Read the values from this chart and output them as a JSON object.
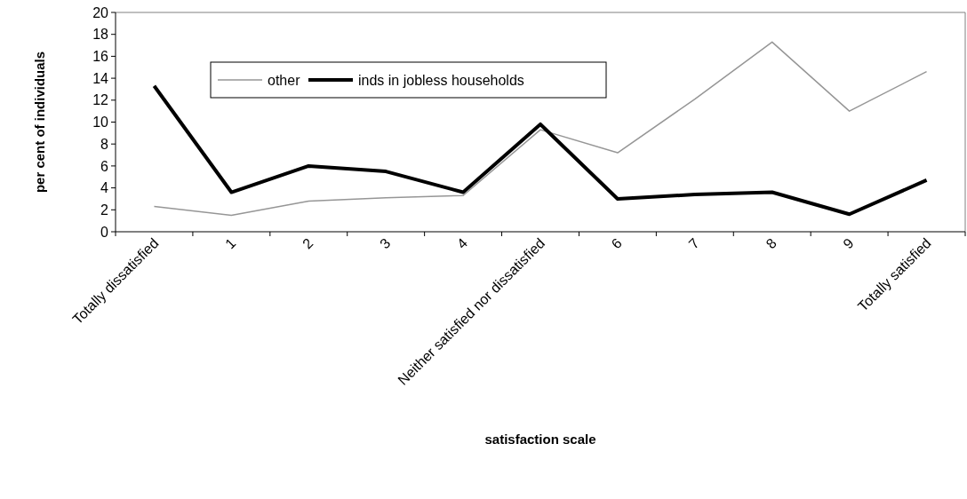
{
  "chart_data": {
    "type": "line",
    "xlabel": "satisfaction scale",
    "ylabel": "per cent of individuals",
    "categories": [
      "Totally dissatisfied",
      "1",
      "2",
      "3",
      "4",
      "Neither satisfied nor dissatisfied",
      "6",
      "7",
      "8",
      "9",
      "Totally satisfied"
    ],
    "series": [
      {
        "name": "other",
        "color": "#969696",
        "values": [
          2.3,
          1.5,
          2.8,
          3.1,
          3.3,
          9.3,
          7.2,
          12.1,
          17.3,
          11.0,
          14.6
        ]
      },
      {
        "name": "inds in jobless households",
        "color": "#000000",
        "values": [
          13.3,
          3.6,
          6.0,
          5.5,
          3.6,
          9.8,
          3.0,
          3.4,
          3.6,
          1.6,
          4.7
        ]
      }
    ],
    "ylim": [
      0,
      20
    ],
    "yticks": [
      0,
      2,
      4,
      6,
      8,
      10,
      12,
      14,
      16,
      18,
      20
    ],
    "grid": false,
    "legend": "top left",
    "marker": "none",
    "line_style": "solid"
  }
}
